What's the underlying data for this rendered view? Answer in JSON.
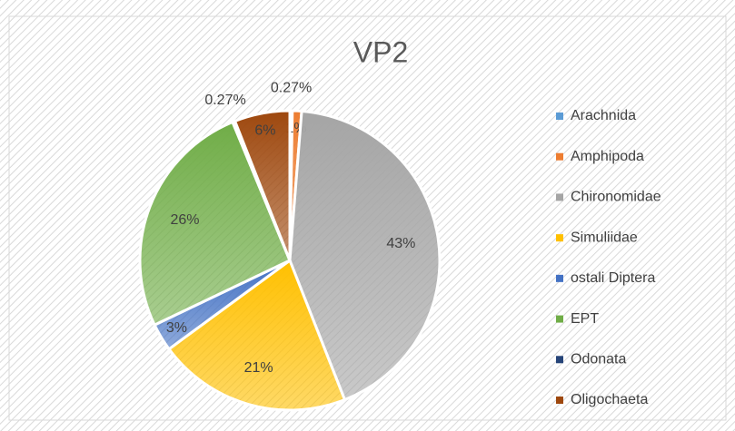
{
  "chart_data": {
    "type": "pie",
    "title": "VP2",
    "categories": [
      "Arachnida",
      "Amphipoda",
      "Chironomidae",
      "Simuliidae",
      "ostali Diptera",
      "EPT",
      "Odonata",
      "Oligochaeta"
    ],
    "values": [
      0.27,
      1,
      43,
      21,
      3,
      26,
      0.27,
      6
    ],
    "value_labels": [
      "0.27%",
      "1%",
      "43%",
      "21%",
      "3%",
      "26%",
      "0.27%",
      "6%"
    ],
    "colors": [
      "#5b9bd5",
      "#ed7d31",
      "#a5a5a5",
      "#ffc000",
      "#4472c4",
      "#70ad47",
      "#264478",
      "#9e480e"
    ],
    "legend": "right"
  }
}
